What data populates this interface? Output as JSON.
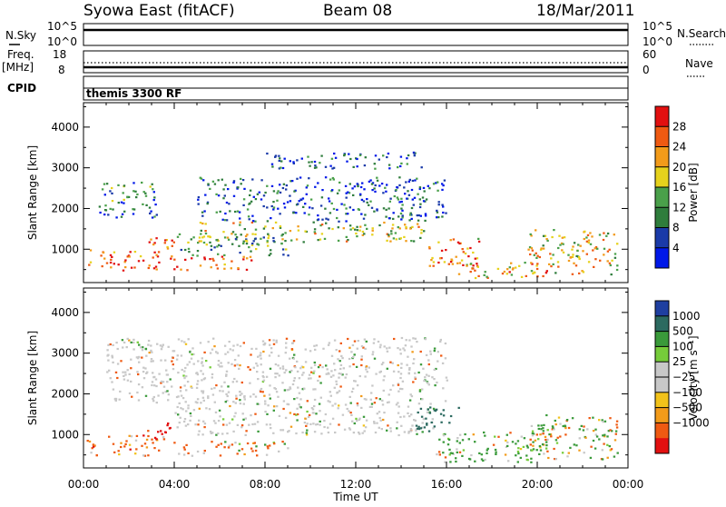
{
  "header": {
    "station": "Syowa East (fitACF)",
    "beam": "Beam 08",
    "date": "18/Mar/2011"
  },
  "top_panels": {
    "nsky": {
      "label": "N.Sky",
      "ticks": [
        "10^5",
        "10^0"
      ]
    },
    "nsearch": {
      "label": "N.Search",
      "ticks": [
        "10^5",
        "10^0"
      ]
    },
    "freq": {
      "label_line1": "Freq.",
      "label_line2": "[MHz]",
      "ticks": [
        "18",
        "8"
      ]
    },
    "nave": {
      "label": "Nave",
      "ticks": [
        "60",
        "0"
      ]
    },
    "cpid": {
      "label": "CPID",
      "value": "themis 3300 RF"
    }
  },
  "colors": {
    "power_scale": [
      "#0018e8",
      "#1a3aa8",
      "#2f7d3c",
      "#4aa04a",
      "#e6d21c",
      "#f29b1a",
      "#ef5a12",
      "#e21010"
    ],
    "velocity_scale": [
      "#e21010",
      "#ef5a12",
      "#f29b1a",
      "#f2c21a",
      "#c8c8c8",
      "#c8c8c8",
      "#76cc3a",
      "#3a9a3a",
      "#2c6a60",
      "#1f3fa0"
    ]
  },
  "chart_data": [
    {
      "type": "heatmap",
      "title": "",
      "xlabel": "Time UT",
      "ylabel": "Slant Range [km]",
      "xlim": [
        "00:00",
        "24:00"
      ],
      "ylim": [
        180,
        4600
      ],
      "x_ticks": [
        "00:00",
        "04:00",
        "08:00",
        "12:00",
        "16:00",
        "20:00",
        "00:00"
      ],
      "y_ticks": [
        "1000",
        "2000",
        "3000",
        "4000"
      ],
      "colorbar": {
        "label": "Power [dB]",
        "ticks": [
          "28",
          "24",
          "20",
          "16",
          "12",
          "8",
          "4"
        ],
        "range": [
          0,
          30
        ]
      },
      "scatter_regions": [
        {
          "t_start": 0.0,
          "t_end": 3.5,
          "r_start": 500,
          "r_end": 1000,
          "value": 24
        },
        {
          "t_start": 2.8,
          "t_end": 4.0,
          "r_start": 850,
          "r_end": 1300,
          "value": 26
        },
        {
          "t_start": 0.6,
          "t_end": 3.2,
          "r_start": 1800,
          "r_end": 2700,
          "value": 8
        },
        {
          "t_start": 3.8,
          "t_end": 7.5,
          "r_start": 500,
          "r_end": 850,
          "value": 26
        },
        {
          "t_start": 4.0,
          "t_end": 9.0,
          "r_start": 850,
          "r_end": 1400,
          "value": 12
        },
        {
          "t_start": 5.0,
          "t_end": 15.0,
          "r_start": 1200,
          "r_end": 1700,
          "value": 16
        },
        {
          "t_start": 5.0,
          "t_end": 16.0,
          "r_start": 1700,
          "r_end": 2800,
          "value": 6
        },
        {
          "t_start": 15.0,
          "t_end": 17.5,
          "r_start": 600,
          "r_end": 1300,
          "value": 22
        },
        {
          "t_start": 16.5,
          "t_end": 20.5,
          "r_start": 300,
          "r_end": 700,
          "value": 20
        },
        {
          "t_start": 19.5,
          "t_end": 23.5,
          "r_start": 400,
          "r_end": 1500,
          "value": 18
        },
        {
          "t_start": 8.0,
          "t_end": 15.0,
          "r_start": 3000,
          "r_end": 3400,
          "value": 6
        }
      ]
    },
    {
      "type": "heatmap",
      "title": "",
      "xlabel": "Time UT",
      "ylabel": "Slant Range [km]",
      "xlim": [
        "00:00",
        "24:00"
      ],
      "ylim": [
        180,
        4600
      ],
      "x_ticks": [
        "00:00",
        "04:00",
        "08:00",
        "12:00",
        "16:00",
        "20:00",
        "00:00"
      ],
      "y_ticks": [
        "1000",
        "2000",
        "3000",
        "4000"
      ],
      "colorbar": {
        "label": "Velocity [m s⁻¹]",
        "ticks": [
          "1000",
          "500",
          "100",
          "25",
          "−25",
          "−100",
          "−500",
          "−1000"
        ],
        "range": [
          -1000,
          1000
        ]
      },
      "scatter_regions": [
        {
          "t_start": 0.0,
          "t_end": 3.5,
          "r_start": 500,
          "r_end": 1000,
          "value": -250
        },
        {
          "t_start": 2.8,
          "t_end": 4.0,
          "r_start": 850,
          "r_end": 1300,
          "value": -700
        },
        {
          "t_start": 3.8,
          "t_end": 9.0,
          "r_start": 500,
          "r_end": 850,
          "value": -150
        },
        {
          "t_start": 4.0,
          "t_end": 15.5,
          "r_start": 1000,
          "r_end": 1800,
          "value": 0
        },
        {
          "t_start": 14.5,
          "t_end": 16.5,
          "r_start": 1100,
          "r_end": 1700,
          "value": 700
        },
        {
          "t_start": 15.5,
          "t_end": 20.5,
          "r_start": 300,
          "r_end": 1100,
          "value": 150
        },
        {
          "t_start": 19.5,
          "t_end": 23.5,
          "r_start": 400,
          "r_end": 1500,
          "value": 60
        },
        {
          "t_start": 1.0,
          "t_end": 16.0,
          "r_start": 1800,
          "r_end": 3400,
          "value": 0
        }
      ]
    }
  ]
}
